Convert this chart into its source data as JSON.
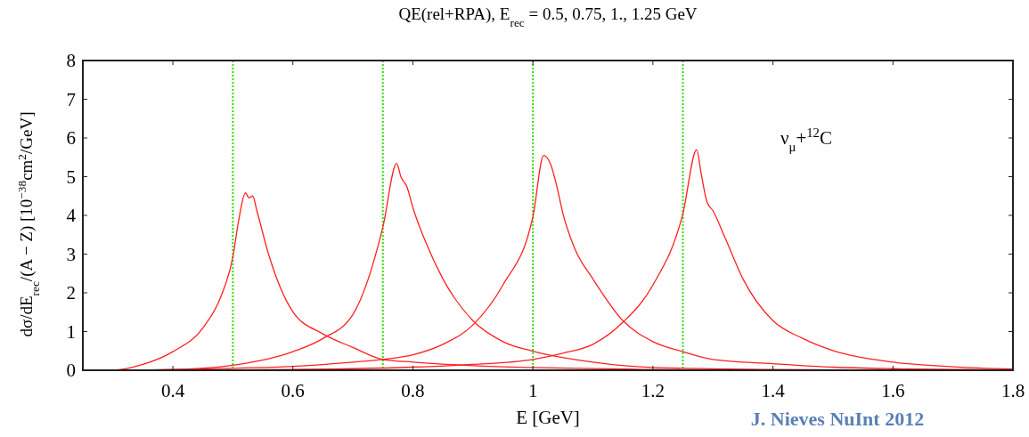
{
  "chart_data": {
    "type": "line",
    "title": "QE(rel+RPA), E$_{rec}$ = 0.5, 0.75, 1., 1.25 GeV",
    "xlabel": "E [GeV]",
    "ylabel": "dσ/dE$_{rec}$/(A − Z) [10$^{−38}$cm$^{2}$/GeV]",
    "annotations": [
      "ν$_{μ}$+$^{12}$C",
      "J. Nieves NuInt 2012"
    ],
    "xlim": [
      0.25,
      1.8
    ],
    "xticks": [
      0.4,
      0.6,
      0.8,
      1,
      1.2,
      1.4,
      1.6,
      1.8
    ],
    "ylim": [
      0,
      8
    ],
    "yticks": [
      0,
      1,
      2,
      3,
      4,
      5,
      6,
      7,
      8
    ],
    "grid": false,
    "line_style": "solid",
    "ref_lines": [
      {
        "axis": "x",
        "value": 0.5,
        "label": null,
        "color": "#33e000",
        "line_style": "dotted"
      },
      {
        "axis": "x",
        "value": 0.75,
        "label": null,
        "color": "#33e000",
        "line_style": "dotted"
      },
      {
        "axis": "x",
        "value": 1,
        "label": null,
        "color": "#33e000",
        "line_style": "dotted"
      },
      {
        "axis": "x",
        "value": 1.25,
        "label": null,
        "color": "#33e000",
        "line_style": "dotted"
      }
    ],
    "series": [
      {
        "color": "#ff2020",
        "x": [
          0.25,
          0.3,
          0.35,
          0.4,
          0.45,
          0.48,
          0.5,
          0.51,
          0.521,
          0.527,
          0.533,
          0.54,
          0.56,
          0.6,
          0.65,
          0.7,
          0.75,
          0.8,
          0.9,
          1.0,
          1.2,
          1.4,
          1.8
        ],
        "values": [
          0,
          0,
          0.15,
          0.48,
          1.09,
          1.9,
          2.93,
          3.9,
          4.58,
          4.45,
          4.5,
          4.12,
          2.97,
          1.51,
          0.94,
          0.59,
          0.28,
          0.21,
          0.12,
          0.07,
          0.02,
          0,
          0
        ]
      },
      {
        "color": "#ff2020",
        "x": [
          0.25,
          0.3,
          0.4,
          0.5,
          0.6,
          0.65,
          0.7,
          0.75,
          0.773,
          0.78,
          0.79,
          0.8,
          0.82,
          0.85,
          0.9,
          0.95,
          1.0,
          1.1,
          1.2,
          1.4,
          1.6,
          1.8
        ],
        "values": [
          0,
          0,
          0.02,
          0.13,
          0.48,
          0.82,
          1.44,
          3.7,
          5.34,
          5.0,
          4.74,
          4.2,
          3.36,
          2.36,
          1.28,
          0.74,
          0.49,
          0.21,
          0.07,
          0.02,
          0,
          0
        ]
      },
      {
        "color": "#ff2020",
        "x": [
          0.25,
          0.3,
          0.5,
          0.6,
          0.7,
          0.75,
          0.8,
          0.85,
          0.9,
          0.95,
          1.0,
          1.018,
          1.03,
          1.04,
          1.05,
          1.07,
          1.1,
          1.15,
          1.2,
          1.25,
          1.3,
          1.4,
          1.5,
          1.6,
          1.8
        ],
        "values": [
          0,
          0,
          0.05,
          0.1,
          0.21,
          0.28,
          0.4,
          0.67,
          1.17,
          2.2,
          3.97,
          5.55,
          5.3,
          4.74,
          4.05,
          3.13,
          2.36,
          1.28,
          0.74,
          0.48,
          0.28,
          0.17,
          0.08,
          0.04,
          0.01
        ]
      },
      {
        "color": "#ff2020",
        "x": [
          0.25,
          0.5,
          0.7,
          0.8,
          0.9,
          1.0,
          1.05,
          1.1,
          1.15,
          1.2,
          1.25,
          1.273,
          1.28,
          1.29,
          1.3,
          1.32,
          1.35,
          1.4,
          1.45,
          1.5,
          1.6,
          1.7,
          1.8
        ],
        "values": [
          0,
          0.01,
          0.04,
          0.08,
          0.15,
          0.28,
          0.44,
          0.67,
          1.24,
          2.2,
          4.05,
          5.7,
          5.12,
          4.35,
          4.12,
          3.43,
          2.36,
          1.28,
          0.82,
          0.51,
          0.21,
          0.09,
          0.03
        ]
      }
    ]
  }
}
